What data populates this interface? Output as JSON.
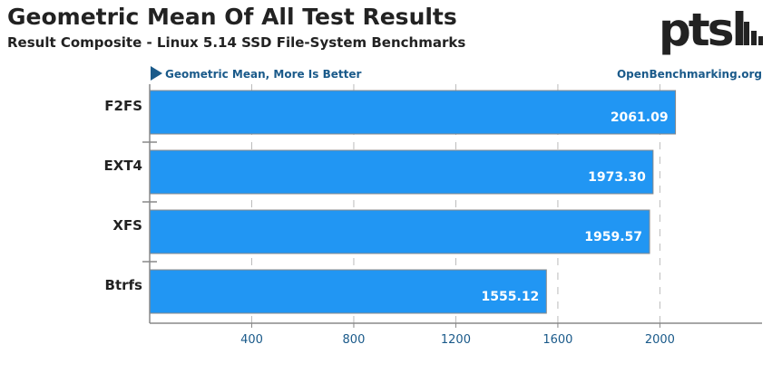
{
  "title": "Geometric Mean Of All Test Results",
  "subtitle": "Result Composite - Linux 5.14 SSD File-System Benchmarks",
  "logo_text": "ptsl",
  "note": "Geometric Mean, More Is Better",
  "source": "OpenBenchmarking.org",
  "colors": {
    "bar": "#2196f3",
    "bar_border": "#8a8a8a",
    "note": "#1a5a8a",
    "axis": "#888888"
  },
  "chart_data": {
    "type": "bar",
    "orientation": "horizontal",
    "categories": [
      "F2FS",
      "EXT4",
      "XFS",
      "Btrfs"
    ],
    "values": [
      2061.09,
      1973.3,
      1959.57,
      1555.12
    ],
    "value_labels": [
      "2061.09",
      "1973.30",
      "1959.57",
      "1555.12"
    ],
    "xticks": [
      400,
      800,
      1200,
      1600,
      2000
    ],
    "xlim": [
      0,
      2400
    ],
    "grid": true
  }
}
